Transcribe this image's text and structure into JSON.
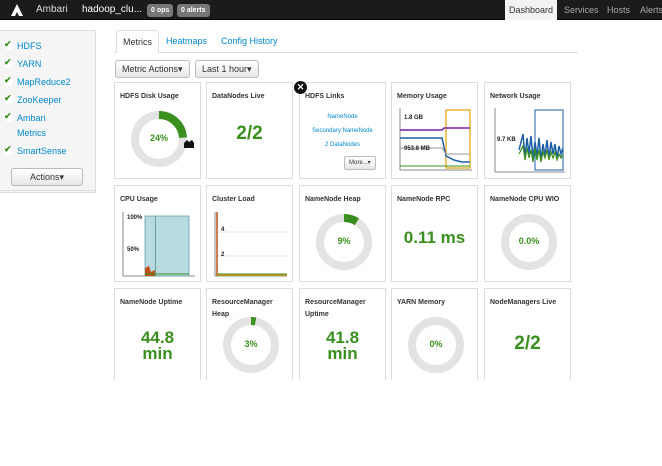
{
  "topbar": {
    "brand": "Ambari",
    "cluster": "hadoop_clu...",
    "ops_badge": "0 ops",
    "alerts_badge": "0 alerts",
    "nav": [
      "Dashboard",
      "Services",
      "Hosts",
      "Alerts"
    ]
  },
  "sidebar": {
    "services": [
      "HDFS",
      "YARN",
      "MapReduce2",
      "ZooKeeper",
      "Ambari",
      "Metrics",
      "SmartSense"
    ],
    "actions_label": "Actions▾"
  },
  "tabs": [
    "Metrics",
    "Heatmaps",
    "Config History"
  ],
  "buttons": {
    "metric_actions": "Metric Actions▾",
    "time_range": "Last 1 hour▾"
  },
  "widgets": {
    "hdfs_disk": {
      "title": "HDFS Disk Usage",
      "percent_label": "24%",
      "percent": 24
    },
    "datanodes": {
      "title": "DataNodes Live",
      "value": "2/2"
    },
    "hdfs_links": {
      "title": "HDFS Links",
      "links": [
        "NameNode",
        "Secondary NameNode",
        "2 DataNodes"
      ],
      "more": "More...▾"
    },
    "memory": {
      "title": "Memory Usage",
      "label_top": "1.8 GB",
      "label_bottom": "953.8 MB"
    },
    "network": {
      "title": "Network Usage",
      "label": "9.7 KB"
    },
    "cpu": {
      "title": "CPU Usage",
      "label_top": "100%",
      "label_mid": "50%"
    },
    "cluster_load": {
      "title": "Cluster Load",
      "label_top": "4",
      "label_mid": "2"
    },
    "nn_heap": {
      "title": "NameNode Heap",
      "percent_label": "9%",
      "percent": 9
    },
    "nn_rpc": {
      "title": "NameNode RPC",
      "value": "0.11 ms"
    },
    "nn_cpu": {
      "title": "NameNode CPU WIO",
      "percent_label": "0.0%",
      "percent": 0
    },
    "nn_uptime": {
      "title": "NameNode Uptime",
      "value1": "44.8",
      "value2": "min"
    },
    "rm_heap": {
      "title": "ResourceManager Heap",
      "percent_label": "3%",
      "percent": 3
    },
    "rm_uptime": {
      "title": "ResourceManager Uptime",
      "value1": "41.8",
      "value2": "min"
    },
    "yarn_mem": {
      "title": "YARN Memory",
      "percent_label": "0%",
      "percent": 0
    },
    "nm_live": {
      "title": "NodeManagers Live",
      "value": "2/2"
    }
  },
  "colors": {
    "accent_green": "#3a8f1e",
    "link_blue": "#0088cc",
    "topbar": "#1b1b1b"
  }
}
